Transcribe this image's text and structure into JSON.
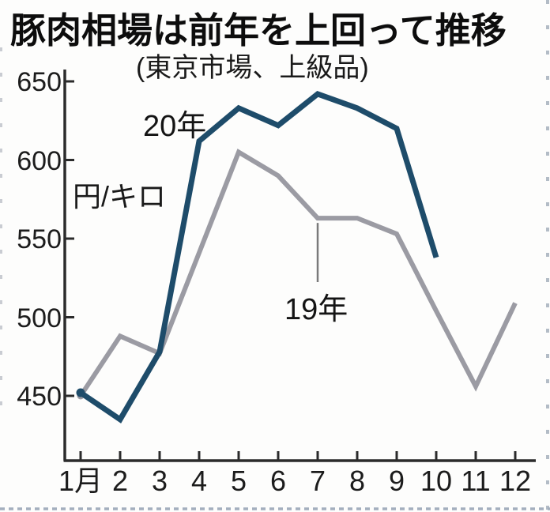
{
  "title": "豚肉相場は前年を上回って推移",
  "subtitle": "(東京市場、上級品)",
  "chart_data": {
    "type": "line",
    "title": "豚肉相場は前年を上回って推移",
    "subtitle": "(東京市場、上級品)",
    "unit_label": "円/キロ",
    "xlabel": "",
    "ylabel": "円/キロ",
    "x_labels": [
      "1月",
      "2",
      "3",
      "4",
      "5",
      "6",
      "7",
      "8",
      "9",
      "10",
      "11",
      "12"
    ],
    "y_ticks": [
      450,
      500,
      550,
      600,
      650
    ],
    "ylim": [
      428,
      657
    ],
    "grid": false,
    "legend_position": "on-line-labels",
    "series": [
      {
        "name": "20年",
        "color": "#1e4c6a",
        "values": [
          452,
          435,
          478,
          612,
          633,
          622,
          642,
          633,
          620,
          538
        ]
      },
      {
        "name": "19年",
        "color": "#9b9ba3",
        "values": [
          450,
          488,
          477,
          541,
          605,
          590,
          563,
          563,
          553,
          504,
          456,
          509
        ]
      }
    ],
    "annotations": [
      {
        "text": "20年",
        "attached_to": "series 20年 near April rise"
      },
      {
        "text": "19年",
        "attached_to": "series 19年 July point, vertical callout line"
      }
    ],
    "colors": {
      "axis": "#2b2b2b",
      "callout_line": "#7a7a7a",
      "edge_dots": "#b3bcc6",
      "bottom_dots": "#a4afbe"
    }
  }
}
